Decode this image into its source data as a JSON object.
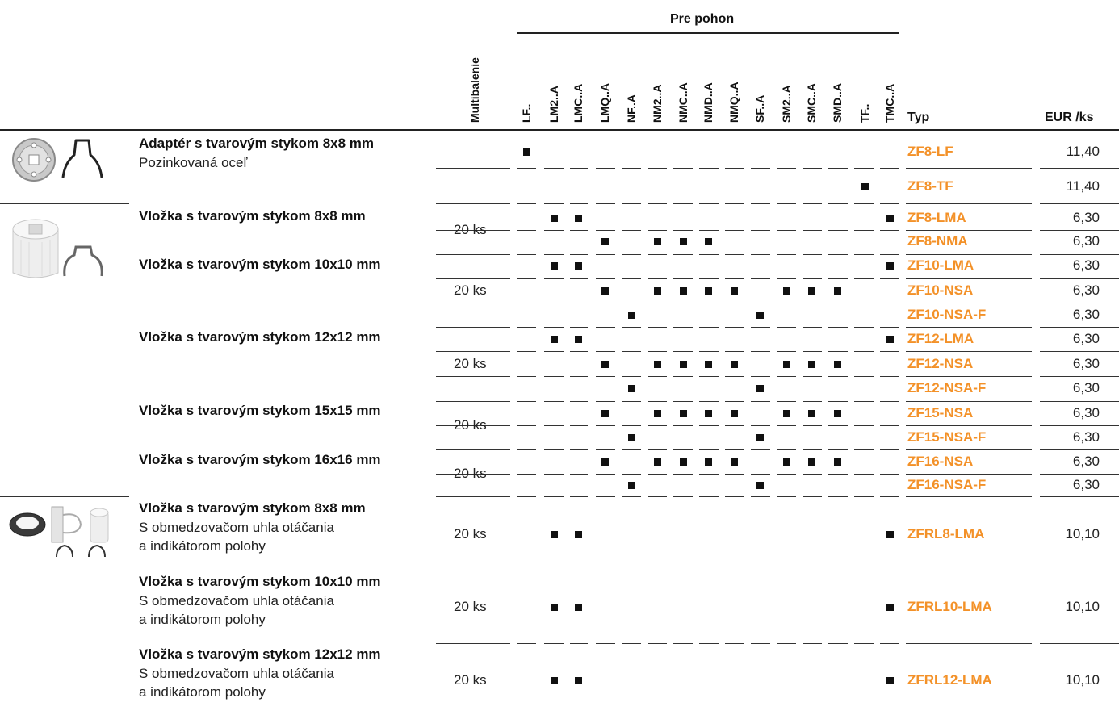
{
  "header": {
    "group_label": "Pre pohon",
    "multibalenie": "Multibalenie",
    "type_label": "Typ",
    "price_label": "EUR /ks",
    "drives": [
      "LF..",
      "LM2..A",
      "LMC..A",
      "LMQ..A",
      "NF..A",
      "NM2..A",
      "NMC..A",
      "NMD..A",
      "NMQ..A",
      "SF..A",
      "SM2..A",
      "SMC..A",
      "SMD..A",
      "TF..",
      "TMC..A"
    ]
  },
  "colors": {
    "accent": "#f39128",
    "text": "#1a1a1a"
  },
  "groups": [
    {
      "name": "Adaptér s tvarovým stykom 8x8 mm",
      "sub": [
        "Pozinkovaná oceľ"
      ],
      "qty": "",
      "image": "adapter-clip-image"
    },
    {
      "name": "Vložka s tvarovým stykom 8x8 mm",
      "sub": [],
      "qty": "20 ks",
      "image": "insert-image"
    },
    {
      "name": "Vložka s tvarovým stykom 10x10 mm",
      "sub": [],
      "qty": "20 ks"
    },
    {
      "name": "Vložka s tvarovým stykom 12x12 mm",
      "sub": [],
      "qty": "20 ks"
    },
    {
      "name": "Vložka s tvarovým stykom 15x15 mm",
      "sub": [],
      "qty": "20 ks"
    },
    {
      "name": "Vložka s tvarovým stykom 16x16 mm",
      "sub": [],
      "qty": "20 ks"
    },
    {
      "name": "Vložka s tvarovým stykom 8x8 mm",
      "sub": [
        "S obmedzovačom uhla otáčania",
        "a indikátorom polohy"
      ],
      "qty": "20 ks",
      "image": "limiter-image"
    },
    {
      "name": "Vložka s tvarovým stykom 10x10 mm",
      "sub": [
        "S obmedzovačom uhla otáčania",
        "a indikátorom polohy"
      ],
      "qty": "20 ks"
    },
    {
      "name": "Vložka s tvarovým stykom 12x12 mm",
      "sub": [
        "S obmedzovačom uhla otáčania",
        "a indikátorom polohy"
      ],
      "qty": "20 ks"
    }
  ],
  "rows": [
    {
      "type": "ZF8-LF",
      "price": "11,40",
      "drives": [
        "LF.."
      ]
    },
    {
      "type": "ZF8-TF",
      "price": "11,40",
      "drives": [
        "TF.."
      ]
    },
    {
      "type": "ZF8-LMA",
      "price": "6,30",
      "drives": [
        "LM2..A",
        "LMC..A",
        "TMC..A"
      ]
    },
    {
      "type": "ZF8-NMA",
      "price": "6,30",
      "drives": [
        "LMQ..A",
        "NM2..A",
        "NMC..A",
        "NMD..A"
      ]
    },
    {
      "type": "ZF10-LMA",
      "price": "6,30",
      "drives": [
        "LM2..A",
        "LMC..A",
        "TMC..A"
      ]
    },
    {
      "type": "ZF10-NSA",
      "price": "6,30",
      "drives": [
        "LMQ..A",
        "NM2..A",
        "NMC..A",
        "NMD..A",
        "NMQ..A",
        "SM2..A",
        "SMC..A",
        "SMD..A"
      ]
    },
    {
      "type": "ZF10-NSA-F",
      "price": "6,30",
      "drives": [
        "NF..A",
        "SF..A"
      ]
    },
    {
      "type": "ZF12-LMA",
      "price": "6,30",
      "drives": [
        "LM2..A",
        "LMC..A",
        "TMC..A"
      ]
    },
    {
      "type": "ZF12-NSA",
      "price": "6,30",
      "drives": [
        "LMQ..A",
        "NM2..A",
        "NMC..A",
        "NMD..A",
        "NMQ..A",
        "SM2..A",
        "SMC..A",
        "SMD..A"
      ]
    },
    {
      "type": "ZF12-NSA-F",
      "price": "6,30",
      "drives": [
        "NF..A",
        "SF..A"
      ]
    },
    {
      "type": "ZF15-NSA",
      "price": "6,30",
      "drives": [
        "LMQ..A",
        "NM2..A",
        "NMC..A",
        "NMD..A",
        "NMQ..A",
        "SM2..A",
        "SMC..A",
        "SMD..A"
      ]
    },
    {
      "type": "ZF15-NSA-F",
      "price": "6,30",
      "drives": [
        "NF..A",
        "SF..A"
      ]
    },
    {
      "type": "ZF16-NSA",
      "price": "6,30",
      "drives": [
        "LMQ..A",
        "NM2..A",
        "NMC..A",
        "NMD..A",
        "NMQ..A",
        "SM2..A",
        "SMC..A",
        "SMD..A"
      ]
    },
    {
      "type": "ZF16-NSA-F",
      "price": "6,30",
      "drives": [
        "NF..A",
        "SF..A"
      ]
    },
    {
      "type": "ZFRL8-LMA",
      "price": "10,10",
      "drives": [
        "LM2..A",
        "LMC..A",
        "TMC..A"
      ]
    },
    {
      "type": "ZFRL10-LMA",
      "price": "10,10",
      "drives": [
        "LM2..A",
        "LMC..A",
        "TMC..A"
      ]
    },
    {
      "type": "ZFRL12-LMA",
      "price": "10,10",
      "drives": [
        "LM2..A",
        "LMC..A",
        "TMC..A"
      ]
    }
  ]
}
